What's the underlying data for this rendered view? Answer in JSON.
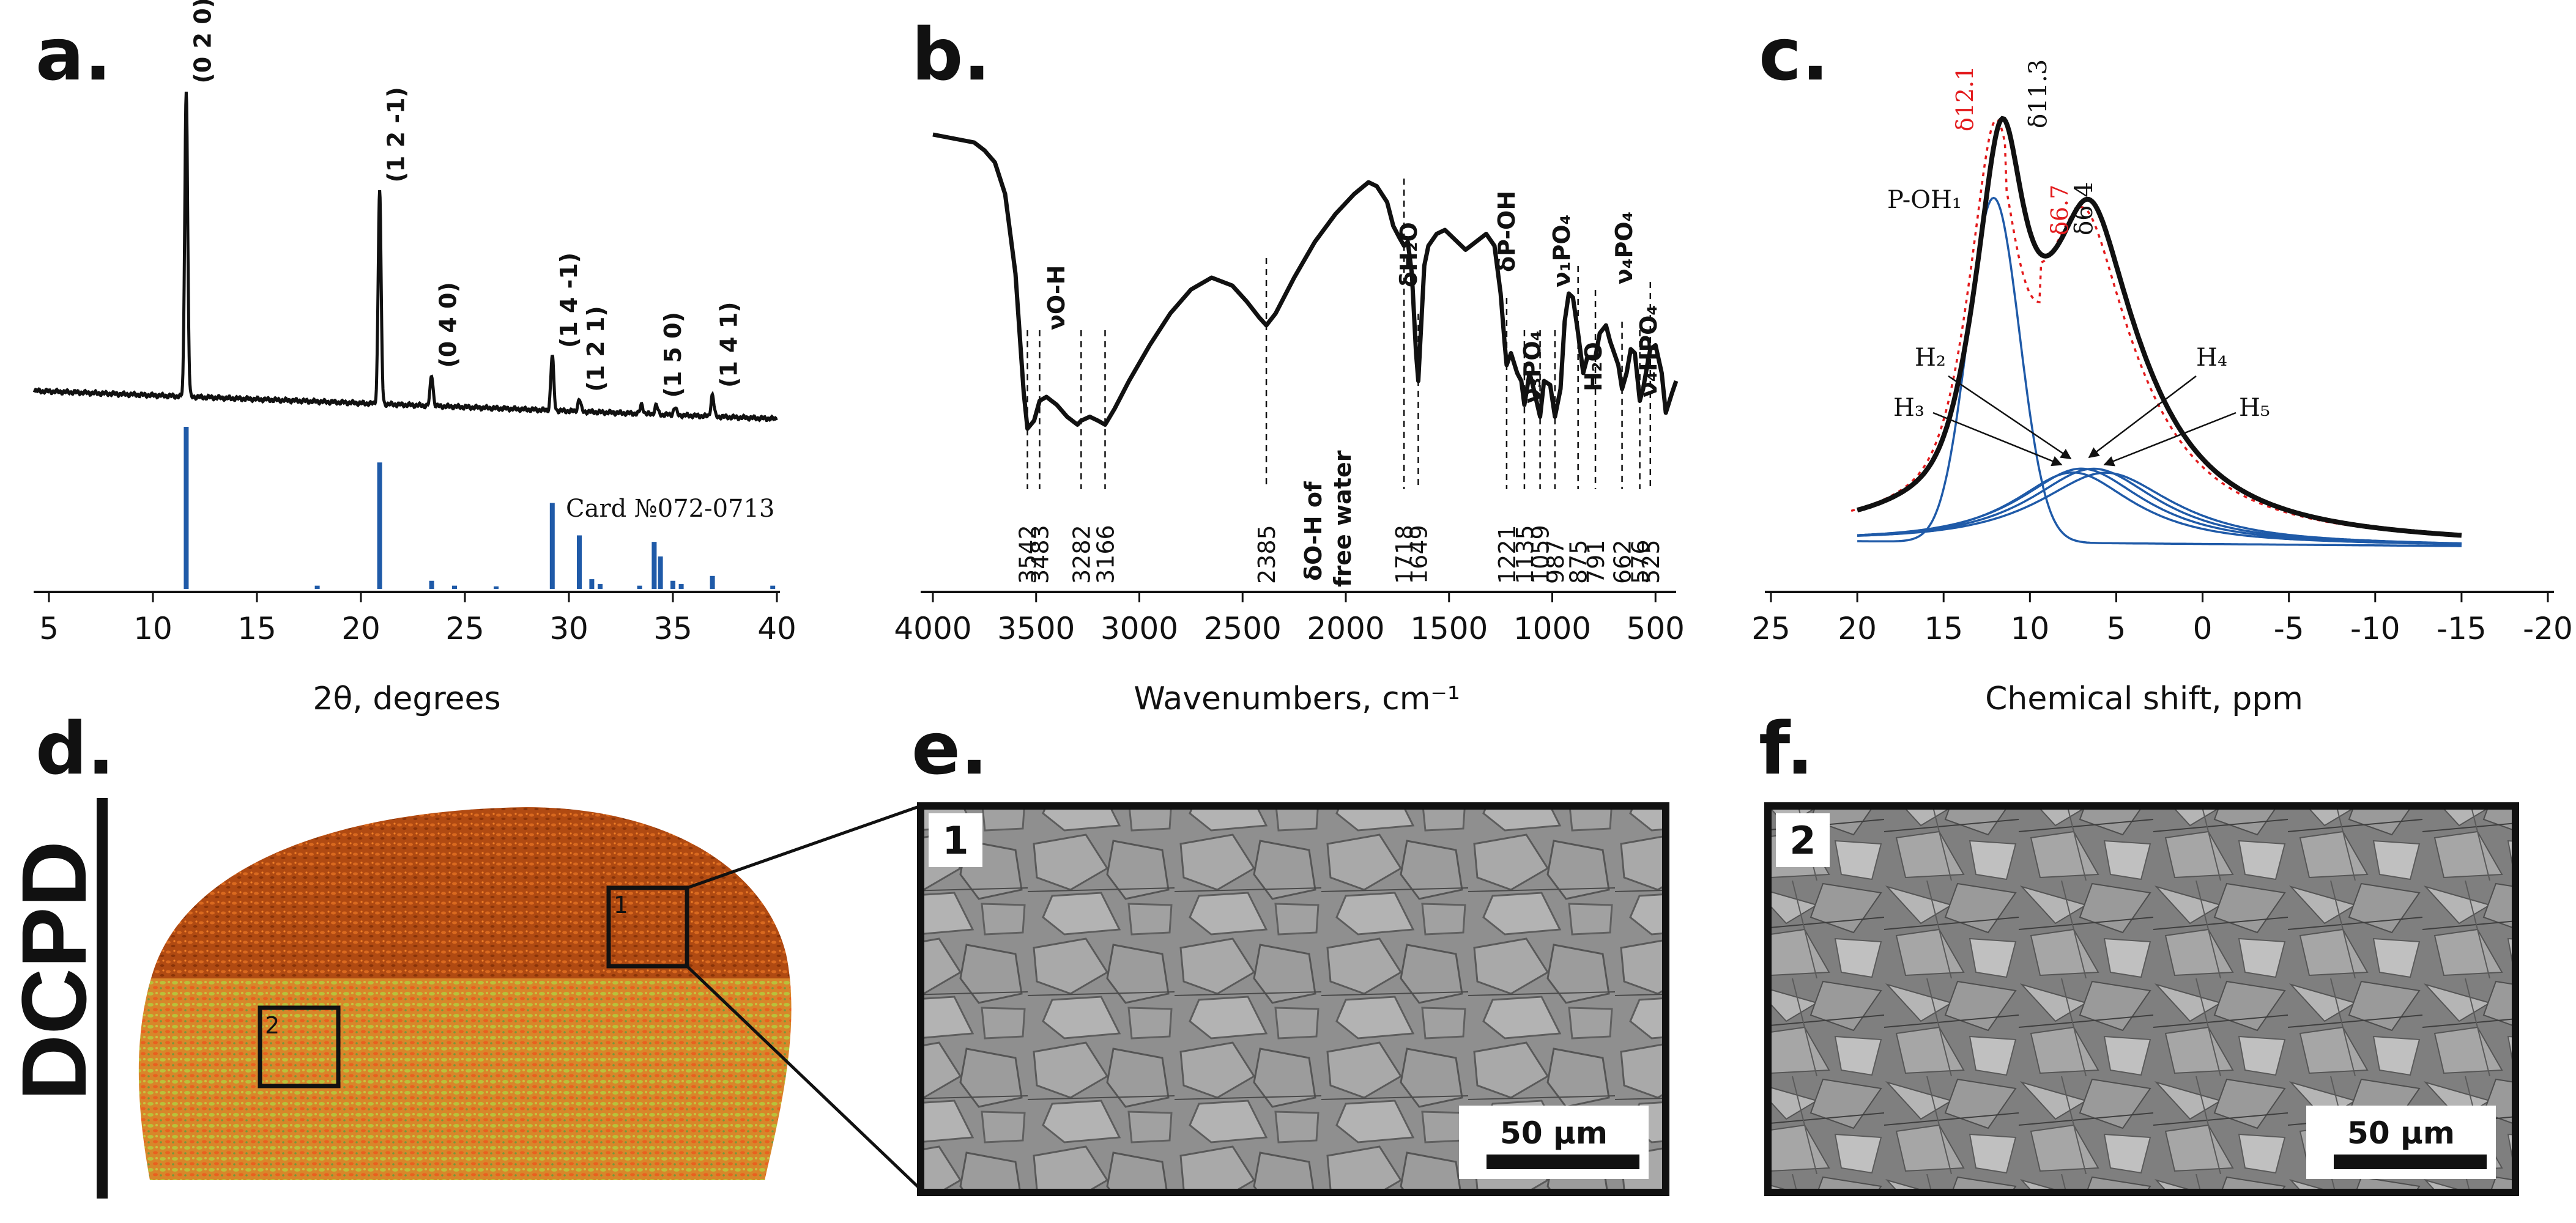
{
  "figure": {
    "panel_letters": [
      "a.",
      "b.",
      "c.",
      "d.",
      "e.",
      "f."
    ],
    "side_label": "DCPD",
    "inset_labels": [
      "1",
      "2"
    ],
    "scale_bar": "50 µm",
    "colors": {
      "trace": "#111111",
      "reference": "#1f5aa8",
      "fit": "#1f5aa8",
      "fit_dotted": "#e31a1c",
      "annotation_red": "#e31a1c"
    }
  },
  "chart_data": [
    {
      "type": "line",
      "panel": "a.",
      "xlabel": "2θ, degrees",
      "x_ticks": [
        "5",
        "10",
        "15",
        "20",
        "25",
        "30",
        "35",
        "40"
      ],
      "xlim": [
        4,
        40
      ],
      "peaks": [
        {
          "x": 11.6,
          "h": 1.0,
          "label": "(0 2 0)"
        },
        {
          "x": 20.9,
          "h": 0.7,
          "label": "(1 2 -1)"
        },
        {
          "x": 23.4,
          "h": 0.1,
          "label": "(0 4 0)"
        },
        {
          "x": 29.2,
          "h": 0.18,
          "label": "(1 4 -1)"
        },
        {
          "x": 30.5,
          "h": 0.04,
          "label": "(1 2 1)"
        },
        {
          "x": 33.5,
          "h": 0.03,
          "label": ""
        },
        {
          "x": 34.2,
          "h": 0.03,
          "label": "(1 5 0)"
        },
        {
          "x": 35.1,
          "h": 0.025,
          "label": ""
        },
        {
          "x": 36.9,
          "h": 0.07,
          "label": "(1 4 1)"
        }
      ],
      "reference_label": "Card №072-0713",
      "reference_lines": [
        {
          "x": 11.6,
          "h": 1.0
        },
        {
          "x": 17.9,
          "h": 0.02
        },
        {
          "x": 20.9,
          "h": 0.78
        },
        {
          "x": 23.4,
          "h": 0.05
        },
        {
          "x": 24.5,
          "h": 0.02
        },
        {
          "x": 26.5,
          "h": 0.015
        },
        {
          "x": 29.2,
          "h": 0.53
        },
        {
          "x": 30.5,
          "h": 0.33
        },
        {
          "x": 31.1,
          "h": 0.06
        },
        {
          "x": 31.5,
          "h": 0.03
        },
        {
          "x": 33.4,
          "h": 0.02
        },
        {
          "x": 34.1,
          "h": 0.29
        },
        {
          "x": 34.4,
          "h": 0.2
        },
        {
          "x": 35.0,
          "h": 0.05
        },
        {
          "x": 35.4,
          "h": 0.03
        },
        {
          "x": 36.9,
          "h": 0.08
        },
        {
          "x": 39.8,
          "h": 0.02
        }
      ]
    },
    {
      "type": "line",
      "panel": "b.",
      "xlabel": "Wavenumbers, cm⁻¹",
      "x_ticks": [
        "4000",
        "3500",
        "3000",
        "2500",
        "2000",
        "1500",
        "1000",
        "500"
      ],
      "xlim": [
        4000,
        400
      ],
      "series": [
        {
          "x": [
            4000,
            3900,
            3800,
            3750,
            3700,
            3650,
            3600,
            3560,
            3542,
            3510,
            3483,
            3450,
            3400,
            3350,
            3300,
            3282,
            3240,
            3200,
            3166,
            3120,
            3050,
            2950,
            2850,
            2750,
            2650,
            2550,
            2480,
            2420,
            2385,
            2340,
            2250,
            2150,
            2050,
            1960,
            1890,
            1850,
            1800,
            1770,
            1740,
            1718,
            1700,
            1680,
            1660,
            1649,
            1640,
            1620,
            1600,
            1560,
            1520,
            1480,
            1420,
            1370,
            1320,
            1280,
            1250,
            1230,
            1221,
            1200,
            1170,
            1150,
            1135,
            1110,
            1090,
            1059,
            1040,
            1010,
            987,
            960,
            940,
            920,
            900,
            875,
            850,
            830,
            791,
            770,
            740,
            720,
            700,
            680,
            662,
            640,
            620,
            600,
            576,
            560,
            540,
            525,
            500,
            470,
            450,
            420,
            400
          ],
          "y": [
            10,
            11,
            12,
            14,
            17,
            25,
            45,
            75,
            84,
            82,
            77,
            76,
            78,
            81,
            83,
            82,
            81,
            82,
            83,
            79,
            72,
            63,
            55,
            49,
            46,
            48,
            52,
            56,
            58,
            55,
            46,
            37,
            30,
            25,
            22,
            23,
            27,
            33,
            36,
            38,
            37,
            45,
            65,
            72,
            63,
            43,
            38,
            35,
            34,
            36,
            39,
            37,
            35,
            38,
            50,
            63,
            68,
            65,
            70,
            72,
            78,
            70,
            74,
            81,
            72,
            73,
            81,
            74,
            57,
            50,
            51,
            60,
            70,
            66,
            66,
            60,
            58,
            62,
            65,
            68,
            74,
            70,
            64,
            65,
            77,
            74,
            68,
            64,
            63,
            70,
            80,
            75,
            72
          ],
          "labels": [
            {
              "x": 3542,
              "text": "3542"
            },
            {
              "x": 3483,
              "text": "3483"
            },
            {
              "x": 3282,
              "text": "3282"
            },
            {
              "x": 3166,
              "text": "3166"
            },
            {
              "x": 2385,
              "text": "2385"
            },
            {
              "x": 1718,
              "text": "1718"
            },
            {
              "x": 1649,
              "text": "1649"
            },
            {
              "x": 1221,
              "text": "1221"
            },
            {
              "x": 1135,
              "text": "1135"
            },
            {
              "x": 1059,
              "text": "1059"
            },
            {
              "x": 987,
              "text": "987"
            },
            {
              "x": 875,
              "text": "875"
            },
            {
              "x": 791,
              "text": "791"
            },
            {
              "x": 662,
              "text": "662"
            },
            {
              "x": 576,
              "text": "576"
            },
            {
              "x": 525,
              "text": "525"
            }
          ]
        }
      ],
      "annotations": {
        "vOH": "νO-H",
        "dH2O": "δH₂O",
        "dOH_free_1": "δO-H of",
        "dOH_free_2": "free water",
        "dPOH": "δP-OH",
        "v3PO4": "ν₃PO₄",
        "v1PO4": "ν₁PO₄",
        "H2O": "H₂O",
        "v4PO4": "ν₄PO₄",
        "v4HPO4": "ν₄HPO₄"
      }
    },
    {
      "type": "line",
      "panel": "c.",
      "xlabel": "Chemical shift, ppm",
      "x_ticks": [
        "25",
        "20",
        "15",
        "10",
        "5",
        "0",
        "-5",
        "-10",
        "-15",
        "-20"
      ],
      "xlim": [
        25,
        -20
      ],
      "data_range": [
        20,
        -15
      ],
      "components": [
        {
          "name": "P-OH₁",
          "center": 12.1,
          "amp": 0.88,
          "width": 1.5
        },
        {
          "name": "H₂",
          "center": 7.5,
          "amp": 0.18,
          "width": 4.0
        },
        {
          "name": "H₃",
          "center": 7.0,
          "amp": 0.19,
          "width": 4.2
        },
        {
          "name": "H₄",
          "center": 6.3,
          "amp": 0.19,
          "width": 4.3
        },
        {
          "name": "H₅",
          "center": 5.6,
          "amp": 0.18,
          "width": 4.5
        }
      ],
      "peak_labels": {
        "red_1": "δ12.1",
        "black_1": "δ11.3",
        "red_2": "δ6.7",
        "black_2": "δ6.4",
        "poh": "P-OH₁",
        "h2": "H₂",
        "h3": "H₃",
        "h4": "H₄",
        "h5": "H₅"
      }
    }
  ]
}
